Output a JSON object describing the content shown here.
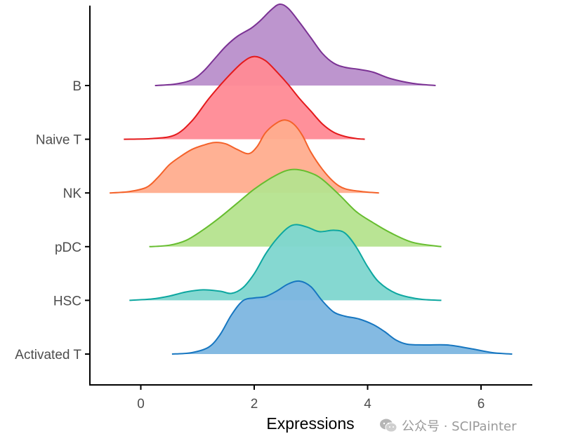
{
  "chart_data": {
    "type": "ridgeline",
    "xlabel": "Expressions",
    "ylabel": "",
    "xlim": [
      -0.9,
      6.9
    ],
    "x_ticks": [
      0,
      2,
      4,
      6
    ],
    "grid": false,
    "legend": "none",
    "categories": [
      "B",
      "Naive T",
      "NK",
      "pDC",
      "HSC",
      "Activated T"
    ],
    "series": [
      {
        "name": "B",
        "color": "#7B3294",
        "fill": "#B98FCB",
        "points": [
          [
            0.25,
            0.0
          ],
          [
            0.6,
            0.02
          ],
          [
            0.9,
            0.08
          ],
          [
            1.1,
            0.2
          ],
          [
            1.3,
            0.38
          ],
          [
            1.5,
            0.56
          ],
          [
            1.7,
            0.7
          ],
          [
            1.95,
            0.82
          ],
          [
            2.1,
            0.92
          ],
          [
            2.3,
            1.08
          ],
          [
            2.45,
            1.16
          ],
          [
            2.6,
            1.1
          ],
          [
            2.8,
            0.9
          ],
          [
            3.0,
            0.68
          ],
          [
            3.2,
            0.46
          ],
          [
            3.4,
            0.32
          ],
          [
            3.6,
            0.26
          ],
          [
            3.85,
            0.23
          ],
          [
            4.1,
            0.19
          ],
          [
            4.4,
            0.1
          ],
          [
            4.8,
            0.03
          ],
          [
            5.2,
            0.0
          ]
        ]
      },
      {
        "name": "Naive T",
        "color": "#E41A1C",
        "fill": "#FF8A95",
        "points": [
          [
            -0.3,
            0.0
          ],
          [
            0.2,
            0.01
          ],
          [
            0.6,
            0.06
          ],
          [
            0.9,
            0.26
          ],
          [
            1.2,
            0.58
          ],
          [
            1.5,
            0.86
          ],
          [
            1.8,
            1.1
          ],
          [
            2.0,
            1.18
          ],
          [
            2.2,
            1.12
          ],
          [
            2.4,
            0.96
          ],
          [
            2.6,
            0.78
          ],
          [
            2.8,
            0.58
          ],
          [
            3.0,
            0.4
          ],
          [
            3.2,
            0.22
          ],
          [
            3.4,
            0.1
          ],
          [
            3.6,
            0.04
          ],
          [
            3.8,
            0.01
          ],
          [
            3.95,
            0.0
          ]
        ]
      },
      {
        "name": "NK",
        "color": "#F4622A",
        "fill": "#FFAD8E",
        "points": [
          [
            -0.55,
            0.0
          ],
          [
            -0.2,
            0.02
          ],
          [
            0.1,
            0.08
          ],
          [
            0.3,
            0.22
          ],
          [
            0.5,
            0.4
          ],
          [
            0.7,
            0.52
          ],
          [
            0.9,
            0.62
          ],
          [
            1.1,
            0.68
          ],
          [
            1.3,
            0.72
          ],
          [
            1.5,
            0.7
          ],
          [
            1.7,
            0.62
          ],
          [
            1.9,
            0.56
          ],
          [
            2.05,
            0.66
          ],
          [
            2.2,
            0.86
          ],
          [
            2.4,
            1.0
          ],
          [
            2.55,
            1.04
          ],
          [
            2.7,
            0.98
          ],
          [
            2.85,
            0.82
          ],
          [
            3.0,
            0.58
          ],
          [
            3.2,
            0.34
          ],
          [
            3.4,
            0.16
          ],
          [
            3.6,
            0.06
          ],
          [
            3.9,
            0.02
          ],
          [
            4.2,
            0.0
          ]
        ]
      },
      {
        "name": "pDC",
        "color": "#66BD2F",
        "fill": "#B5E38E",
        "points": [
          [
            0.15,
            0.0
          ],
          [
            0.5,
            0.02
          ],
          [
            0.8,
            0.09
          ],
          [
            1.1,
            0.24
          ],
          [
            1.4,
            0.42
          ],
          [
            1.7,
            0.62
          ],
          [
            2.0,
            0.82
          ],
          [
            2.3,
            0.98
          ],
          [
            2.55,
            1.08
          ],
          [
            2.75,
            1.1
          ],
          [
            3.0,
            1.05
          ],
          [
            3.2,
            0.96
          ],
          [
            3.5,
            0.74
          ],
          [
            3.8,
            0.5
          ],
          [
            4.1,
            0.34
          ],
          [
            4.4,
            0.2
          ],
          [
            4.8,
            0.06
          ],
          [
            5.3,
            0.0
          ]
        ]
      },
      {
        "name": "HSC",
        "color": "#0DA7A0",
        "fill": "#7ED6CF",
        "points": [
          [
            -0.2,
            0.0
          ],
          [
            0.2,
            0.02
          ],
          [
            0.5,
            0.06
          ],
          [
            0.8,
            0.12
          ],
          [
            1.1,
            0.15
          ],
          [
            1.4,
            0.13
          ],
          [
            1.6,
            0.1
          ],
          [
            1.8,
            0.18
          ],
          [
            2.0,
            0.38
          ],
          [
            2.2,
            0.66
          ],
          [
            2.4,
            0.88
          ],
          [
            2.6,
            1.04
          ],
          [
            2.75,
            1.08
          ],
          [
            2.95,
            1.04
          ],
          [
            3.15,
            0.98
          ],
          [
            3.4,
            1.0
          ],
          [
            3.6,
            0.96
          ],
          [
            3.8,
            0.76
          ],
          [
            4.0,
            0.48
          ],
          [
            4.2,
            0.26
          ],
          [
            4.5,
            0.1
          ],
          [
            4.9,
            0.02
          ],
          [
            5.3,
            0.0
          ]
        ]
      },
      {
        "name": "Activated T",
        "color": "#1676C0",
        "fill": "#7DB6E0",
        "points": [
          [
            0.55,
            0.0
          ],
          [
            0.9,
            0.02
          ],
          [
            1.2,
            0.1
          ],
          [
            1.4,
            0.28
          ],
          [
            1.6,
            0.56
          ],
          [
            1.8,
            0.76
          ],
          [
            2.0,
            0.8
          ],
          [
            2.2,
            0.82
          ],
          [
            2.4,
            0.9
          ],
          [
            2.6,
            1.0
          ],
          [
            2.8,
            1.04
          ],
          [
            3.0,
            0.96
          ],
          [
            3.2,
            0.76
          ],
          [
            3.4,
            0.6
          ],
          [
            3.6,
            0.54
          ],
          [
            3.85,
            0.5
          ],
          [
            4.1,
            0.42
          ],
          [
            4.3,
            0.32
          ],
          [
            4.5,
            0.2
          ],
          [
            4.7,
            0.14
          ],
          [
            5.0,
            0.13
          ],
          [
            5.4,
            0.13
          ],
          [
            5.8,
            0.08
          ],
          [
            6.2,
            0.02
          ],
          [
            6.55,
            0.0
          ]
        ]
      }
    ]
  },
  "watermark": {
    "icon": "wechat-icon",
    "text": "公众号 · SCIPainter"
  }
}
